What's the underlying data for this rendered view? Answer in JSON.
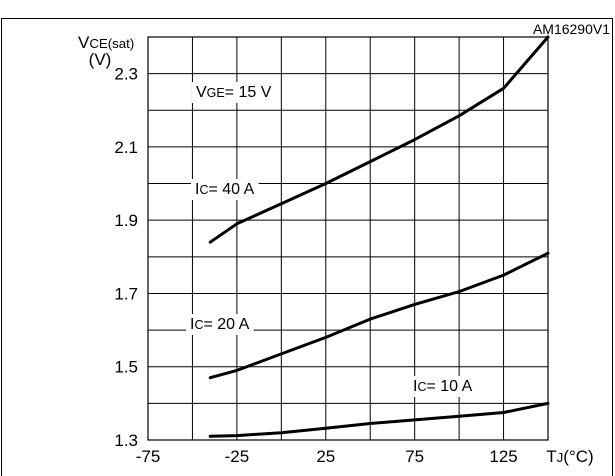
{
  "figure_code": "AM16290V1",
  "chart_data": {
    "type": "line",
    "ylabel_main": "V",
    "ylabel_sub": "CE(sat)",
    "ylabel_unit": "(V)",
    "xlabel_main": "T",
    "xlabel_sub": "J",
    "xlabel_unit": "(°C)",
    "xlim": [
      -75,
      150
    ],
    "ylim": [
      1.3,
      2.4
    ],
    "x_ticks": [
      -75,
      -25,
      25,
      75,
      125
    ],
    "x_tick_labels": [
      "-75",
      "-25",
      "25",
      "75",
      "125"
    ],
    "x_grid": [
      -75,
      -50,
      -25,
      0,
      25,
      50,
      75,
      100,
      125,
      150
    ],
    "y_ticks": [
      1.3,
      1.5,
      1.7,
      1.9,
      2.1,
      2.3
    ],
    "y_tick_labels": [
      "1.3",
      "1.5",
      "1.7",
      "1.9",
      "2.1",
      "2.3"
    ],
    "y_grid": [
      1.3,
      1.4,
      1.5,
      1.6,
      1.7,
      1.8,
      1.9,
      2.0,
      2.1,
      2.2,
      2.3,
      2.4
    ],
    "grid": true,
    "condition": {
      "main": "V",
      "sub": "GE",
      "rest": "= 15 V"
    },
    "series": [
      {
        "name": "I C= 40 A",
        "label_main": "I",
        "label_sub": "C",
        "label_rest": "= 40 A",
        "x": [
          -40,
          -25,
          0,
          25,
          50,
          75,
          100,
          125,
          150
        ],
        "y": [
          1.84,
          1.89,
          1.945,
          2.0,
          2.06,
          2.12,
          2.185,
          2.26,
          2.4
        ]
      },
      {
        "name": "I C= 20 A",
        "label_main": "I",
        "label_sub": "C",
        "label_rest": "= 20 A",
        "x": [
          -40,
          -25,
          0,
          25,
          50,
          75,
          100,
          125,
          150
        ],
        "y": [
          1.47,
          1.49,
          1.535,
          1.58,
          1.63,
          1.67,
          1.705,
          1.75,
          1.81
        ]
      },
      {
        "name": "I C= 10 A",
        "label_main": "I",
        "label_sub": "C",
        "label_rest": "= 10 A",
        "x": [
          -40,
          -25,
          0,
          25,
          50,
          75,
          100,
          125,
          150
        ],
        "y": [
          1.31,
          1.312,
          1.32,
          1.332,
          1.345,
          1.355,
          1.365,
          1.375,
          1.4
        ]
      }
    ]
  }
}
